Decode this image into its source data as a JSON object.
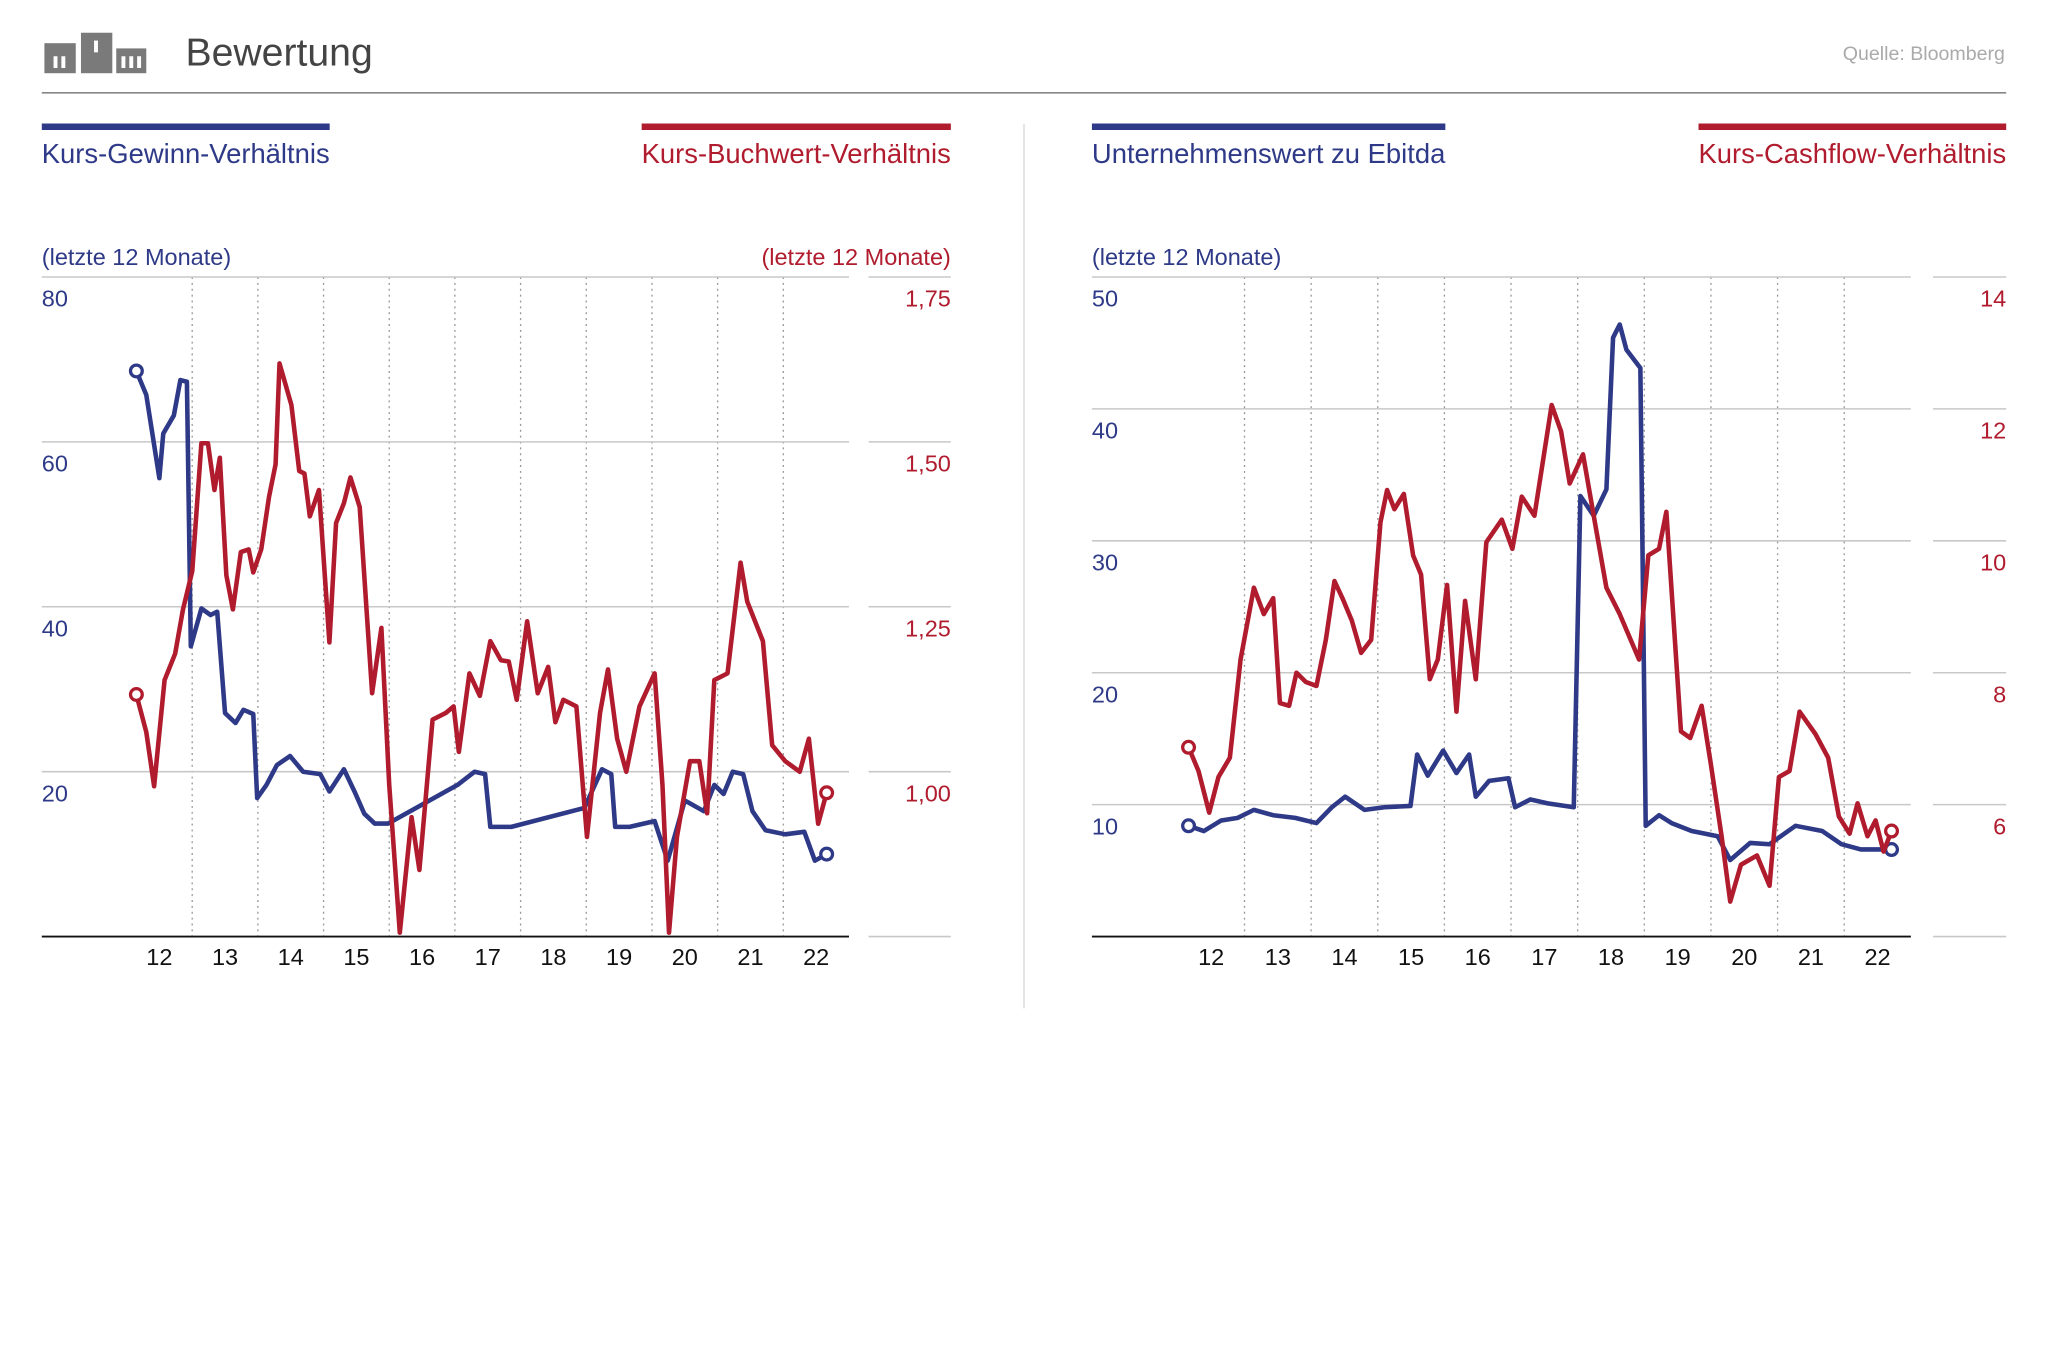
{
  "title": "Bewertung",
  "source": "Quelle: Bloomberg",
  "chart_data": [
    {
      "type": "line",
      "ylabel": "(letzte 12 Monate)",
      "y2label": "(letzte 12 Monate)",
      "xlim": [
        10.71,
        23.0
      ],
      "xticks": [
        {
          "value": 12.5,
          "label": "12"
        },
        {
          "value": 13.5,
          "label": "13"
        },
        {
          "value": 14.5,
          "label": "14"
        },
        {
          "value": 15.5,
          "label": "15"
        },
        {
          "value": 16.5,
          "label": "16"
        },
        {
          "value": 17.5,
          "label": "17"
        },
        {
          "value": 18.5,
          "label": "18"
        },
        {
          "value": 19.5,
          "label": "19"
        },
        {
          "value": 20.5,
          "label": "20"
        },
        {
          "value": 21.5,
          "label": "21"
        },
        {
          "value": 22.5,
          "label": "22"
        }
      ],
      "ylim": [
        0,
        80
      ],
      "yticks": [
        20,
        40,
        60,
        80
      ],
      "y2lim": [
        0.75,
        1.75
      ],
      "y2ticks": [
        {
          "value": 1.0,
          "label": "1,00"
        },
        {
          "value": 1.25,
          "label": "1,25"
        },
        {
          "value": 1.5,
          "label": "1,50"
        },
        {
          "value": 1.75,
          "label": "1,75"
        }
      ],
      "grid": true,
      "series": [
        {
          "name": "Kurs-Gewinn-Verhältnis",
          "color": "#2e3a87",
          "axis": "y",
          "x": [
            12.15,
            12.3,
            12.5,
            12.56,
            12.72,
            12.82,
            12.92,
            12.98,
            13.14,
            13.28,
            13.38,
            13.5,
            13.66,
            13.78,
            13.93,
            13.99,
            14.13,
            14.29,
            14.49,
            14.69,
            14.95,
            15.09,
            15.31,
            15.47,
            15.62,
            15.78,
            15.98,
            17.04,
            17.3,
            17.46,
            17.54,
            17.86,
            18.97,
            19.24,
            19.38,
            19.44,
            19.66,
            20.04,
            20.24,
            20.5,
            20.79,
            20.95,
            21.09,
            21.23,
            21.39,
            21.53,
            21.73,
            22.03,
            22.32,
            22.48,
            22.66
          ],
          "values": [
            68.6,
            65.7,
            55.6,
            61.0,
            63.2,
            67.5,
            67.3,
            35.2,
            39.8,
            39.0,
            39.4,
            27.1,
            25.9,
            27.5,
            27.0,
            16.8,
            18.4,
            20.8,
            21.9,
            20.0,
            19.7,
            17.6,
            20.3,
            17.6,
            14.9,
            13.7,
            13.7,
            18.4,
            20.0,
            19.7,
            13.3,
            13.3,
            15.6,
            20.3,
            19.7,
            13.3,
            13.3,
            14.0,
            9.2,
            16.5,
            15.2,
            18.4,
            17.3,
            20.0,
            19.7,
            15.2,
            12.9,
            12.4,
            12.7,
            9.2,
            10.0
          ]
        },
        {
          "name": "Kurs-Buchwert-Verhältnis",
          "color": "#b01c2e",
          "axis": "y2",
          "x": [
            12.15,
            12.3,
            12.42,
            12.58,
            12.74,
            12.86,
            13.0,
            13.14,
            13.24,
            13.34,
            13.42,
            13.52,
            13.62,
            13.74,
            13.86,
            13.93,
            14.05,
            14.17,
            14.27,
            14.33,
            14.51,
            14.63,
            14.71,
            14.79,
            14.93,
            15.09,
            15.19,
            15.31,
            15.41,
            15.55,
            15.74,
            15.88,
            16.0,
            16.16,
            16.34,
            16.46,
            16.66,
            16.86,
            16.98,
            17.06,
            17.22,
            17.38,
            17.54,
            17.7,
            17.82,
            17.94,
            18.1,
            18.26,
            18.42,
            18.53,
            18.65,
            18.85,
            19.01,
            19.21,
            19.33,
            19.47,
            19.61,
            19.81,
            20.04,
            20.16,
            20.26,
            20.38,
            20.58,
            20.72,
            20.84,
            20.95,
            21.15,
            21.35,
            21.45,
            21.69,
            21.83,
            22.03,
            22.25,
            22.39,
            22.53,
            22.66
          ],
          "values": [
            1.117,
            1.06,
            0.978,
            1.139,
            1.179,
            1.246,
            1.304,
            1.498,
            1.498,
            1.427,
            1.476,
            1.298,
            1.246,
            1.333,
            1.337,
            1.302,
            1.337,
            1.417,
            1.466,
            1.619,
            1.556,
            1.456,
            1.452,
            1.387,
            1.427,
            1.196,
            1.377,
            1.407,
            1.446,
            1.401,
            1.119,
            1.218,
            0.98,
            0.756,
            0.931,
            0.851,
            1.079,
            1.089,
            1.099,
            1.03,
            1.149,
            1.115,
            1.198,
            1.169,
            1.167,
            1.109,
            1.228,
            1.119,
            1.159,
            1.075,
            1.109,
            1.099,
            0.901,
            1.089,
            1.155,
            1.05,
            1.0,
            1.099,
            1.149,
            0.98,
            0.756,
            0.901,
            1.016,
            1.016,
            0.937,
            1.139,
            1.149,
            1.317,
            1.258,
            1.198,
            1.04,
            1.016,
            1.0,
            1.05,
            0.921,
            0.968
          ]
        }
      ]
    },
    {
      "type": "line",
      "ylabel": "(letzte 12 Monate)",
      "xlim": [
        10.71,
        23.0
      ],
      "xticks": [
        {
          "value": 12.5,
          "label": "12"
        },
        {
          "value": 13.5,
          "label": "13"
        },
        {
          "value": 14.5,
          "label": "14"
        },
        {
          "value": 15.5,
          "label": "15"
        },
        {
          "value": 16.5,
          "label": "16"
        },
        {
          "value": 17.5,
          "label": "17"
        },
        {
          "value": 18.5,
          "label": "18"
        },
        {
          "value": 19.5,
          "label": "19"
        },
        {
          "value": 20.5,
          "label": "20"
        },
        {
          "value": 21.5,
          "label": "21"
        },
        {
          "value": 22.5,
          "label": "22"
        }
      ],
      "ylim": [
        0,
        50
      ],
      "yticks": [
        10,
        20,
        30,
        40,
        50
      ],
      "y2lim": [
        4,
        14
      ],
      "y2ticks": [
        6,
        8,
        10,
        12,
        14
      ],
      "grid": true,
      "series": [
        {
          "name": "Unternehmenswert zu Ebitda",
          "color": "#2e3a87",
          "axis": "y",
          "x": [
            12.16,
            12.39,
            12.65,
            12.9,
            13.14,
            13.43,
            13.76,
            14.08,
            14.31,
            14.51,
            14.8,
            15.1,
            15.49,
            15.59,
            15.75,
            15.98,
            16.18,
            16.37,
            16.47,
            16.67,
            16.96,
            17.06,
            17.29,
            17.55,
            17.94,
            18.04,
            18.24,
            18.43,
            18.53,
            18.63,
            18.73,
            18.94,
            19.02,
            19.22,
            19.41,
            19.71,
            20.1,
            20.29,
            20.59,
            20.88,
            21.27,
            21.67,
            21.96,
            22.25,
            22.71
          ],
          "values": [
            8.4,
            8.0,
            8.8,
            9.0,
            9.6,
            9.2,
            9.0,
            8.6,
            9.8,
            10.6,
            9.6,
            9.8,
            9.9,
            13.8,
            12.2,
            14.1,
            12.4,
            13.8,
            10.6,
            11.8,
            12.0,
            9.8,
            10.4,
            10.1,
            9.8,
            33.4,
            31.9,
            33.9,
            45.4,
            46.4,
            44.5,
            43.1,
            8.4,
            9.2,
            8.6,
            8.0,
            7.6,
            5.8,
            7.1,
            7.0,
            8.4,
            8.0,
            7.0,
            6.6,
            6.6
          ]
        },
        {
          "name": "Kurs-Cashflow-Verhältnis",
          "color": "#b01c2e",
          "axis": "y2",
          "x": [
            12.16,
            12.31,
            12.47,
            12.61,
            12.78,
            12.94,
            13.14,
            13.29,
            13.43,
            13.53,
            13.67,
            13.78,
            13.92,
            14.08,
            14.22,
            14.35,
            14.47,
            14.61,
            14.75,
            14.9,
            15.04,
            15.14,
            15.25,
            15.39,
            15.53,
            15.65,
            15.78,
            15.9,
            16.04,
            16.18,
            16.31,
            16.47,
            16.63,
            16.86,
            17.02,
            17.16,
            17.35,
            17.61,
            17.75,
            17.88,
            18.08,
            18.24,
            18.43,
            18.63,
            18.92,
            19.06,
            19.22,
            19.33,
            19.55,
            19.69,
            19.86,
            20.0,
            20.16,
            20.29,
            20.45,
            20.69,
            20.88,
            21.02,
            21.18,
            21.33,
            21.57,
            21.76,
            21.92,
            22.08,
            22.2,
            22.35,
            22.47,
            22.59,
            22.71
          ],
          "values": [
            6.87,
            6.51,
            5.88,
            6.42,
            6.71,
            8.2,
            9.29,
            8.89,
            9.13,
            7.54,
            7.5,
            8.0,
            7.86,
            7.8,
            8.5,
            9.39,
            9.13,
            8.79,
            8.3,
            8.5,
            10.28,
            10.77,
            10.48,
            10.71,
            9.78,
            9.49,
            7.9,
            8.2,
            9.33,
            7.41,
            9.09,
            7.9,
            9.98,
            10.32,
            9.88,
            10.67,
            10.38,
            12.06,
            11.66,
            10.87,
            11.31,
            10.38,
            9.29,
            8.89,
            8.2,
            9.78,
            9.88,
            10.44,
            7.11,
            7.01,
            7.5,
            6.61,
            5.52,
            4.53,
            5.09,
            5.23,
            4.77,
            6.42,
            6.51,
            7.41,
            7.07,
            6.71,
            5.82,
            5.56,
            6.02,
            5.52,
            5.76,
            5.29,
            5.6
          ]
        }
      ]
    }
  ]
}
